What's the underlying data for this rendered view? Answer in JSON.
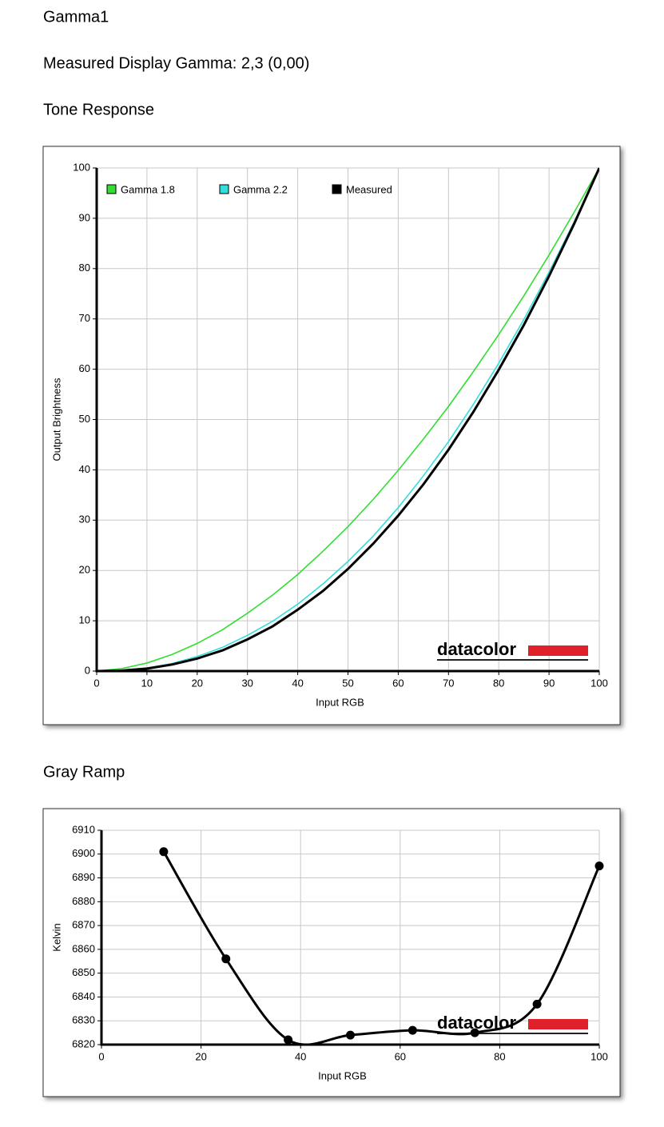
{
  "header": {
    "title": "Gamma1",
    "measured": "Measured Display Gamma: 2,3 (0,00)"
  },
  "chart_data": [
    {
      "type": "line",
      "title": "Tone Response",
      "xlabel": "Input RGB",
      "ylabel": "Output Brightness",
      "watermark": "datacolor",
      "legend": "top-left",
      "grid": true,
      "smooth": false,
      "markers": false,
      "xlim": [
        0,
        100
      ],
      "ylim": [
        0,
        100
      ],
      "xticks": [
        0,
        10,
        20,
        30,
        40,
        50,
        60,
        70,
        80,
        90,
        100
      ],
      "yticks": [
        0,
        10,
        20,
        30,
        40,
        50,
        60,
        70,
        80,
        90,
        100
      ],
      "x": [
        0,
        5,
        10,
        15,
        20,
        25,
        30,
        35,
        40,
        45,
        50,
        55,
        60,
        65,
        70,
        75,
        80,
        85,
        90,
        95,
        100
      ],
      "series": [
        {
          "name": "Gamma 1.8",
          "color": "#33dd33",
          "values": [
            0,
            0.5,
            1.6,
            3.3,
            5.5,
            8.2,
            11.5,
            15.1,
            19.2,
            23.8,
            28.7,
            34.1,
            39.9,
            46.1,
            52.6,
            59.6,
            66.9,
            74.6,
            82.7,
            91.2,
            100
          ]
        },
        {
          "name": "Gamma 2.2",
          "color": "#33dddd",
          "values": [
            0,
            0.1,
            0.6,
            1.5,
            2.9,
            4.7,
            7.1,
            9.9,
            13.3,
            17.3,
            21.8,
            26.8,
            32.5,
            38.8,
            45.6,
            53.1,
            61.2,
            69.9,
            79.3,
            89.3,
            100
          ]
        },
        {
          "name": "Measured",
          "color": "#000000",
          "values": [
            0,
            0.1,
            0.5,
            1.3,
            2.5,
            4.1,
            6.3,
            8.9,
            12.2,
            15.9,
            20.3,
            25.3,
            30.9,
            37.1,
            44.0,
            51.6,
            59.9,
            68.8,
            78.5,
            88.9,
            100
          ]
        }
      ]
    },
    {
      "type": "line",
      "title": "Gray Ramp",
      "xlabel": "Input RGB",
      "ylabel": "Kelvin",
      "watermark": "datacolor",
      "grid": true,
      "smooth": true,
      "markers": true,
      "xlim": [
        0,
        100
      ],
      "ylim": [
        6820,
        6910
      ],
      "xticks": [
        0,
        20,
        40,
        60,
        80,
        100
      ],
      "yticks": [
        6820,
        6830,
        6840,
        6850,
        6860,
        6870,
        6880,
        6890,
        6900,
        6910
      ],
      "x": [
        12.5,
        25,
        37.5,
        50,
        62.5,
        75,
        87.5,
        100
      ],
      "color": "#000000",
      "values": [
        6901,
        6856,
        6822,
        6824,
        6826,
        6825,
        6837,
        6895
      ]
    }
  ]
}
